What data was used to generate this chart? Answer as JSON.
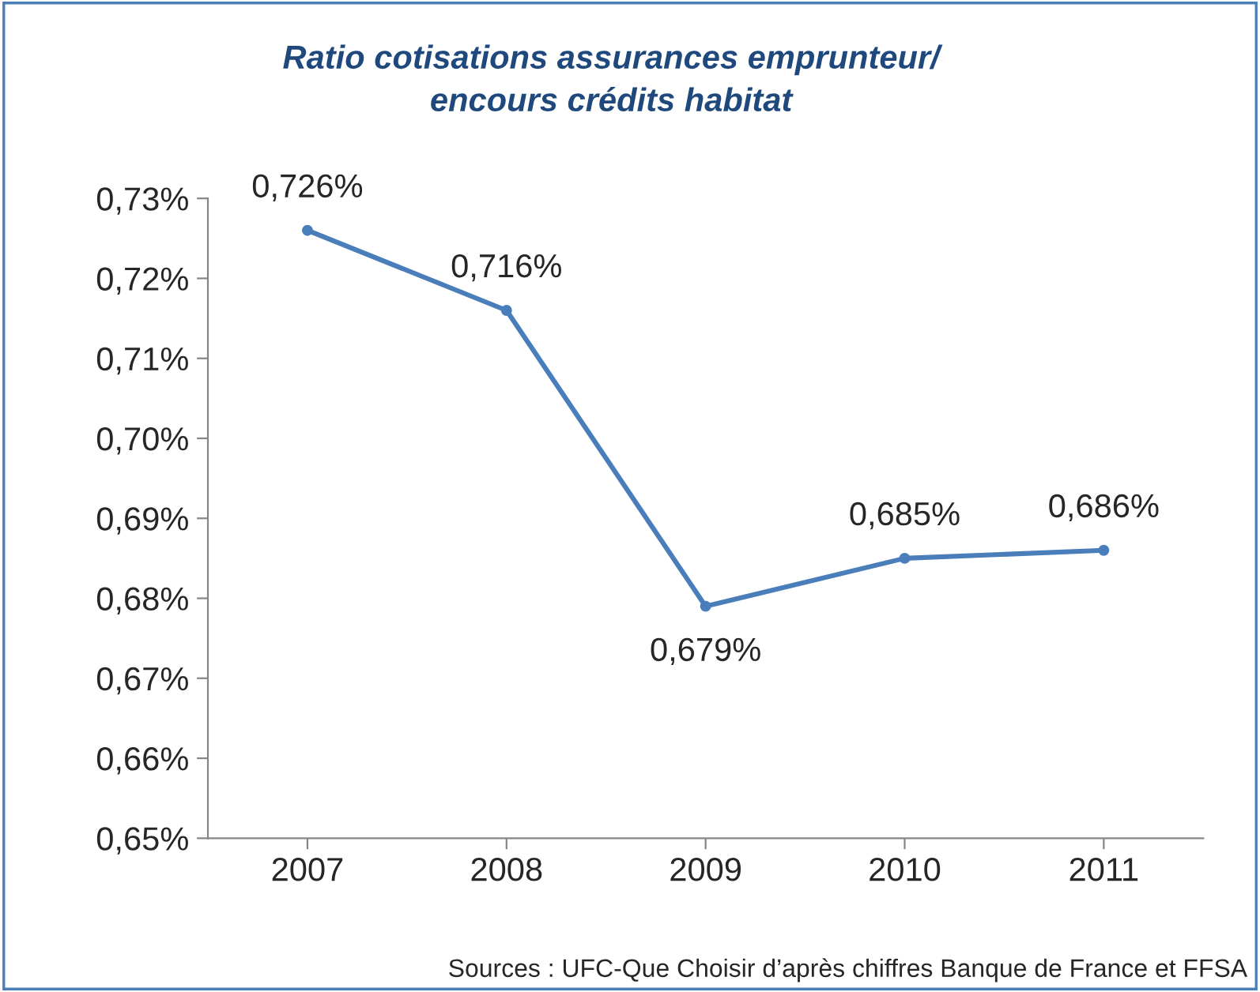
{
  "chart_data": {
    "type": "line",
    "title": "Ratio cotisations assurances emprunteur/\nencours crédits habitat",
    "categories": [
      "2007",
      "2008",
      "2009",
      "2010",
      "2011"
    ],
    "series": [
      {
        "color": "#4a7ebb",
        "values": [
          0.726,
          0.716,
          0.679,
          0.685,
          0.686
        ]
      }
    ],
    "value_labels": [
      "0,726%",
      "0,716%",
      "0,679%",
      "0,685%",
      "0,686%"
    ],
    "ylim": [
      0.65,
      0.73
    ],
    "yticks": [
      {
        "value": 0.65,
        "label": "0,65%"
      },
      {
        "value": 0.66,
        "label": "0,66%"
      },
      {
        "value": 0.67,
        "label": "0,67%"
      },
      {
        "value": 0.68,
        "label": "0,68%"
      },
      {
        "value": 0.69,
        "label": "0,69%"
      },
      {
        "value": 0.7,
        "label": "0,70%"
      },
      {
        "value": 0.71,
        "label": "0,71%"
      },
      {
        "value": 0.72,
        "label": "0,72%"
      },
      {
        "value": 0.73,
        "label": "0,73%"
      }
    ],
    "grid": false,
    "legend": false,
    "marker": "circle",
    "line_style": "solid",
    "annotations": [
      "Sources : UFC-Que Choisir d’après chiffres Banque de France et FFSA"
    ]
  }
}
